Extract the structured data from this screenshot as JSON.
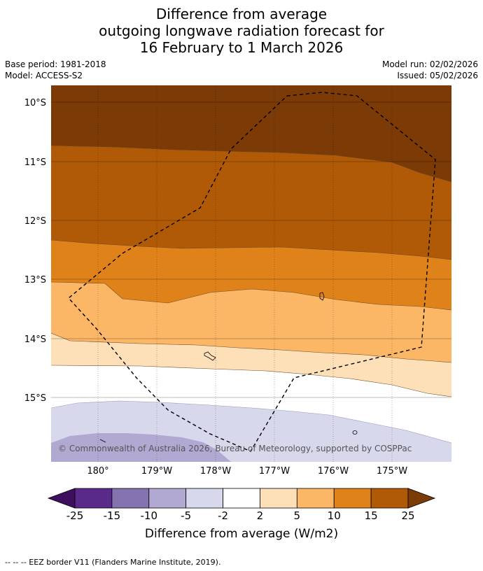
{
  "title": {
    "line1": "Difference from average",
    "line2": "outgoing longwave radiation forecast for",
    "line3": "16 February to 1 March 2026"
  },
  "meta": {
    "base_period": "Base period: 1981-2018",
    "model": "Model: ACCESS-S2",
    "model_run": "Model run: 02/02/2026",
    "issued": "Issued: 05/02/2026"
  },
  "map": {
    "lat_labels": [
      "10°S",
      "11°S",
      "12°S",
      "13°S",
      "14°S",
      "15°S"
    ],
    "lon_labels": [
      "180°",
      "179°W",
      "178°W",
      "177°W",
      "176°W",
      "175°W"
    ],
    "copyright": "© Commonwealth of Australia 2026, Bureau of Meteorology, supported by COSPPac"
  },
  "colorbar": {
    "ticks": [
      "-25",
      "-15",
      "-10",
      "-5",
      "-2",
      "2",
      "5",
      "10",
      "15",
      "25"
    ],
    "colors": [
      "#5a2a8a",
      "#8573b0",
      "#b2a9d3",
      "#d8d8ec",
      "#ffffff",
      "#fde0b8",
      "#fbb765",
      "#e0821a",
      "#b05a08",
      "#7c3a06"
    ],
    "under_color": "#3f0f5f",
    "title": "Difference from average (W/m2)"
  },
  "footer": {
    "eez_note": "--  --  -- EEZ border V11 (Flanders Marine Institute, 2019)."
  }
}
